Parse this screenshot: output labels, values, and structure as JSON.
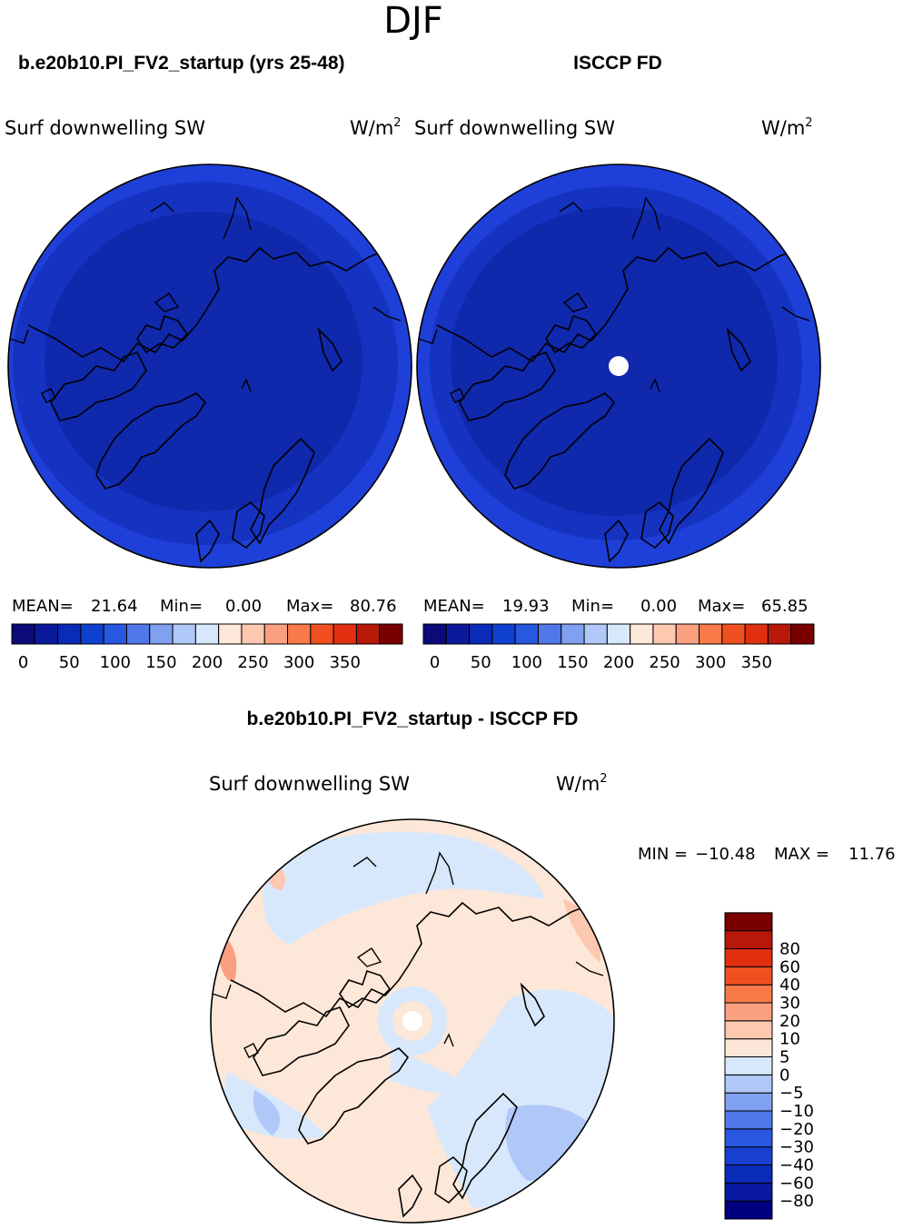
{
  "header": {
    "season": "DJF"
  },
  "panels": [
    {
      "title": "b.e20b10.PI_FV2_startup (yrs 25-48)",
      "variable": "Surf downwelling SW",
      "units_base": "W/m",
      "units_exp": "2",
      "stats": {
        "mean_label": "MEAN=",
        "mean": "21.64",
        "min_label": "Min=",
        "min": "0.00",
        "max_label": "Max=",
        "max": "80.76"
      }
    },
    {
      "title": "ISCCP FD",
      "variable": "Surf downwelling SW",
      "units_base": "W/m",
      "units_exp": "2",
      "stats": {
        "mean_label": "MEAN=",
        "mean": "19.93",
        "min_label": "Min=",
        "min": "0.00",
        "max_label": "Max=",
        "max": "65.85"
      }
    }
  ],
  "abs_colorbar": {
    "colors": [
      "#0a0a7a",
      "#0a1a9a",
      "#0a2ab8",
      "#1040d0",
      "#2858e0",
      "#5078e8",
      "#80a0f0",
      "#b0c8f8",
      "#d8e8fc",
      "#fde7d8",
      "#fcc8b0",
      "#faa080",
      "#f87a48",
      "#f05020",
      "#e03010",
      "#b81808",
      "#7a0000"
    ],
    "tick_labels": [
      "0",
      "50",
      "100",
      "150",
      "200",
      "250",
      "300",
      "350"
    ]
  },
  "diff_panel": {
    "title": "b.e20b10.PI_FV2_startup - ISCCP FD",
    "variable": "Surf downwelling SW",
    "units_base": "W/m",
    "units_exp": "2",
    "minmax": {
      "min_label": "MIN =",
      "min": "−10.48",
      "max_label": "MAX =",
      "max": "11.76"
    }
  },
  "diff_colorbar": {
    "colors": [
      "#000080",
      "#0a1aa0",
      "#0a2ab8",
      "#1840d0",
      "#2858e0",
      "#5078e8",
      "#80a0f0",
      "#b0c8f8",
      "#d8e8fc",
      "#fde7d8",
      "#fcc8b0",
      "#faa080",
      "#f87a48",
      "#f05020",
      "#e03010",
      "#b81808",
      "#7a0000"
    ],
    "tick_labels": [
      "−80",
      "−60",
      "−40",
      "−30",
      "−20",
      "−10",
      "−5",
      "0",
      "5",
      "10",
      "20",
      "30",
      "40",
      "60",
      "80"
    ]
  },
  "chart_data": [
    {
      "type": "heatmap",
      "title": "b.e20b10.PI_FV2_startup (yrs 25-48)",
      "variable": "Surf downwelling SW",
      "units": "W/m2",
      "projection": "north polar stereographic",
      "stats": {
        "mean": 21.64,
        "min": 0.0,
        "max": 80.76
      },
      "levels": [
        0,
        25,
        50,
        75,
        100,
        125,
        150,
        175,
        200,
        225,
        250,
        275,
        300,
        325,
        350,
        375
      ]
    },
    {
      "type": "heatmap",
      "title": "ISCCP FD",
      "variable": "Surf downwelling SW",
      "units": "W/m2",
      "projection": "north polar stereographic",
      "stats": {
        "mean": 19.93,
        "min": 0.0,
        "max": 65.85
      },
      "levels": [
        0,
        25,
        50,
        75,
        100,
        125,
        150,
        175,
        200,
        225,
        250,
        275,
        300,
        325,
        350,
        375
      ]
    },
    {
      "type": "heatmap",
      "title": "b.e20b10.PI_FV2_startup - ISCCP FD",
      "variable": "Surf downwelling SW",
      "units": "W/m2",
      "projection": "north polar stereographic",
      "stats": {
        "min": -10.48,
        "max": 11.76
      },
      "levels": [
        -80,
        -60,
        -40,
        -30,
        -20,
        -10,
        -5,
        0,
        5,
        10,
        20,
        30,
        40,
        60,
        80
      ]
    }
  ]
}
